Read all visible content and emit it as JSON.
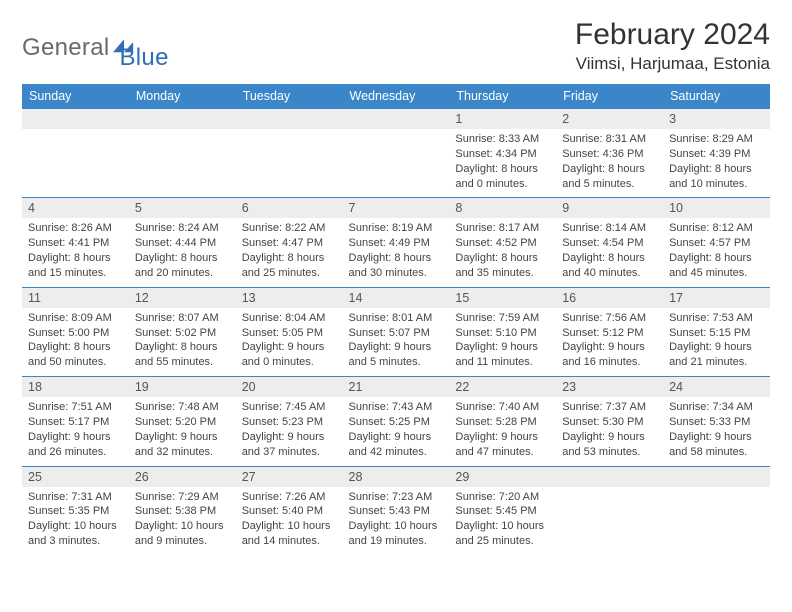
{
  "brand": {
    "general": "General",
    "blue": "Blue"
  },
  "header": {
    "month_title": "February 2024",
    "location": "Viimsi, Harjumaa, Estonia"
  },
  "colors": {
    "accent": "#3a86c8",
    "header_bg": "#3a86c8",
    "daynum_bg": "#ededed",
    "text": "#333333"
  },
  "weekdays": [
    "Sunday",
    "Monday",
    "Tuesday",
    "Wednesday",
    "Thursday",
    "Friday",
    "Saturday"
  ],
  "weeks": [
    [
      null,
      null,
      null,
      null,
      {
        "n": "1",
        "sr": "Sunrise: 8:33 AM",
        "ss": "Sunset: 4:34 PM",
        "d1": "Daylight: 8 hours",
        "d2": "and 0 minutes."
      },
      {
        "n": "2",
        "sr": "Sunrise: 8:31 AM",
        "ss": "Sunset: 4:36 PM",
        "d1": "Daylight: 8 hours",
        "d2": "and 5 minutes."
      },
      {
        "n": "3",
        "sr": "Sunrise: 8:29 AM",
        "ss": "Sunset: 4:39 PM",
        "d1": "Daylight: 8 hours",
        "d2": "and 10 minutes."
      }
    ],
    [
      {
        "n": "4",
        "sr": "Sunrise: 8:26 AM",
        "ss": "Sunset: 4:41 PM",
        "d1": "Daylight: 8 hours",
        "d2": "and 15 minutes."
      },
      {
        "n": "5",
        "sr": "Sunrise: 8:24 AM",
        "ss": "Sunset: 4:44 PM",
        "d1": "Daylight: 8 hours",
        "d2": "and 20 minutes."
      },
      {
        "n": "6",
        "sr": "Sunrise: 8:22 AM",
        "ss": "Sunset: 4:47 PM",
        "d1": "Daylight: 8 hours",
        "d2": "and 25 minutes."
      },
      {
        "n": "7",
        "sr": "Sunrise: 8:19 AM",
        "ss": "Sunset: 4:49 PM",
        "d1": "Daylight: 8 hours",
        "d2": "and 30 minutes."
      },
      {
        "n": "8",
        "sr": "Sunrise: 8:17 AM",
        "ss": "Sunset: 4:52 PM",
        "d1": "Daylight: 8 hours",
        "d2": "and 35 minutes."
      },
      {
        "n": "9",
        "sr": "Sunrise: 8:14 AM",
        "ss": "Sunset: 4:54 PM",
        "d1": "Daylight: 8 hours",
        "d2": "and 40 minutes."
      },
      {
        "n": "10",
        "sr": "Sunrise: 8:12 AM",
        "ss": "Sunset: 4:57 PM",
        "d1": "Daylight: 8 hours",
        "d2": "and 45 minutes."
      }
    ],
    [
      {
        "n": "11",
        "sr": "Sunrise: 8:09 AM",
        "ss": "Sunset: 5:00 PM",
        "d1": "Daylight: 8 hours",
        "d2": "and 50 minutes."
      },
      {
        "n": "12",
        "sr": "Sunrise: 8:07 AM",
        "ss": "Sunset: 5:02 PM",
        "d1": "Daylight: 8 hours",
        "d2": "and 55 minutes."
      },
      {
        "n": "13",
        "sr": "Sunrise: 8:04 AM",
        "ss": "Sunset: 5:05 PM",
        "d1": "Daylight: 9 hours",
        "d2": "and 0 minutes."
      },
      {
        "n": "14",
        "sr": "Sunrise: 8:01 AM",
        "ss": "Sunset: 5:07 PM",
        "d1": "Daylight: 9 hours",
        "d2": "and 5 minutes."
      },
      {
        "n": "15",
        "sr": "Sunrise: 7:59 AM",
        "ss": "Sunset: 5:10 PM",
        "d1": "Daylight: 9 hours",
        "d2": "and 11 minutes."
      },
      {
        "n": "16",
        "sr": "Sunrise: 7:56 AM",
        "ss": "Sunset: 5:12 PM",
        "d1": "Daylight: 9 hours",
        "d2": "and 16 minutes."
      },
      {
        "n": "17",
        "sr": "Sunrise: 7:53 AM",
        "ss": "Sunset: 5:15 PM",
        "d1": "Daylight: 9 hours",
        "d2": "and 21 minutes."
      }
    ],
    [
      {
        "n": "18",
        "sr": "Sunrise: 7:51 AM",
        "ss": "Sunset: 5:17 PM",
        "d1": "Daylight: 9 hours",
        "d2": "and 26 minutes."
      },
      {
        "n": "19",
        "sr": "Sunrise: 7:48 AM",
        "ss": "Sunset: 5:20 PM",
        "d1": "Daylight: 9 hours",
        "d2": "and 32 minutes."
      },
      {
        "n": "20",
        "sr": "Sunrise: 7:45 AM",
        "ss": "Sunset: 5:23 PM",
        "d1": "Daylight: 9 hours",
        "d2": "and 37 minutes."
      },
      {
        "n": "21",
        "sr": "Sunrise: 7:43 AM",
        "ss": "Sunset: 5:25 PM",
        "d1": "Daylight: 9 hours",
        "d2": "and 42 minutes."
      },
      {
        "n": "22",
        "sr": "Sunrise: 7:40 AM",
        "ss": "Sunset: 5:28 PM",
        "d1": "Daylight: 9 hours",
        "d2": "and 47 minutes."
      },
      {
        "n": "23",
        "sr": "Sunrise: 7:37 AM",
        "ss": "Sunset: 5:30 PM",
        "d1": "Daylight: 9 hours",
        "d2": "and 53 minutes."
      },
      {
        "n": "24",
        "sr": "Sunrise: 7:34 AM",
        "ss": "Sunset: 5:33 PM",
        "d1": "Daylight: 9 hours",
        "d2": "and 58 minutes."
      }
    ],
    [
      {
        "n": "25",
        "sr": "Sunrise: 7:31 AM",
        "ss": "Sunset: 5:35 PM",
        "d1": "Daylight: 10 hours",
        "d2": "and 3 minutes."
      },
      {
        "n": "26",
        "sr": "Sunrise: 7:29 AM",
        "ss": "Sunset: 5:38 PM",
        "d1": "Daylight: 10 hours",
        "d2": "and 9 minutes."
      },
      {
        "n": "27",
        "sr": "Sunrise: 7:26 AM",
        "ss": "Sunset: 5:40 PM",
        "d1": "Daylight: 10 hours",
        "d2": "and 14 minutes."
      },
      {
        "n": "28",
        "sr": "Sunrise: 7:23 AM",
        "ss": "Sunset: 5:43 PM",
        "d1": "Daylight: 10 hours",
        "d2": "and 19 minutes."
      },
      {
        "n": "29",
        "sr": "Sunrise: 7:20 AM",
        "ss": "Sunset: 5:45 PM",
        "d1": "Daylight: 10 hours",
        "d2": "and 25 minutes."
      },
      null,
      null
    ]
  ]
}
